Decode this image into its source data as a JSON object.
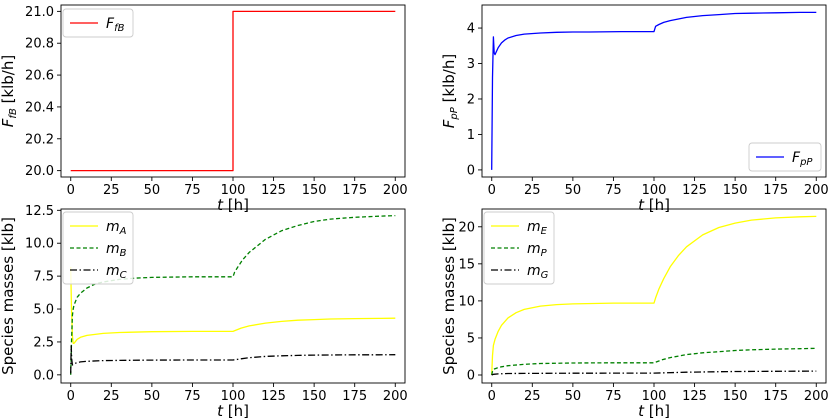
{
  "chart_data": [
    {
      "id": "p1",
      "type": "line",
      "ylabel": "F_fB [klb/h]",
      "ylabel_main": "F",
      "ylabel_sub": "fB",
      "ylabel_unit": " [klb/h]",
      "xlabel_main": "t",
      "xlabel_unit": " [h]",
      "xlim": [
        -6,
        206
      ],
      "ylim": [
        19.96,
        21.04
      ],
      "xticks": [
        0,
        25,
        50,
        75,
        100,
        125,
        150,
        175,
        200
      ],
      "xtick_labels": [
        "0",
        "25",
        "50",
        "75",
        "100",
        "125",
        "150",
        "175",
        "200"
      ],
      "yticks": [
        20.0,
        20.2,
        20.4,
        20.6,
        20.8,
        21.0
      ],
      "ytick_labels": [
        "20.0",
        "20.2",
        "20.4",
        "20.6",
        "20.8",
        "21.0"
      ],
      "legend_position": "top-left",
      "series": [
        {
          "name": "F_fB",
          "main": "F",
          "sub": "fB",
          "color": "#ff0000",
          "dash": "",
          "x": [
            0,
            100,
            100,
            200
          ],
          "y": [
            20.0,
            20.0,
            21.0,
            21.0
          ]
        }
      ]
    },
    {
      "id": "p2",
      "type": "line",
      "ylabel": "F_pP [klb/h]",
      "ylabel_main": "F",
      "ylabel_sub": "pP",
      "ylabel_unit": " [klb/h]",
      "xlabel_main": "t",
      "xlabel_unit": " [h]",
      "xlim": [
        -6,
        206
      ],
      "ylim": [
        -0.2,
        4.65
      ],
      "xticks": [
        0,
        25,
        50,
        75,
        100,
        125,
        150,
        175,
        200
      ],
      "xtick_labels": [
        "0",
        "25",
        "50",
        "75",
        "100",
        "125",
        "150",
        "175",
        "200"
      ],
      "yticks": [
        0,
        1,
        2,
        3,
        4
      ],
      "ytick_labels": [
        "0",
        "1",
        "2",
        "3",
        "4"
      ],
      "legend_position": "bottom-right",
      "series": [
        {
          "name": "F_pP",
          "main": "F",
          "sub": "pP",
          "color": "#0000ff",
          "dash": "",
          "x": [
            0,
            0.5,
            1,
            1.5,
            2,
            4,
            6,
            8,
            10,
            15,
            20,
            30,
            40,
            50,
            60,
            80,
            100,
            101,
            103,
            106,
            110,
            120,
            130,
            140,
            150,
            160,
            175,
            190,
            200
          ],
          "y": [
            0.0,
            2.6,
            3.75,
            3.3,
            3.25,
            3.45,
            3.58,
            3.66,
            3.72,
            3.79,
            3.83,
            3.86,
            3.88,
            3.89,
            3.89,
            3.9,
            3.9,
            4.05,
            4.1,
            4.16,
            4.21,
            4.3,
            4.35,
            4.38,
            4.41,
            4.42,
            4.43,
            4.44,
            4.44
          ]
        }
      ]
    },
    {
      "id": "p3",
      "type": "line",
      "ylabel": "Species masses [klb]",
      "xlabel_main": "t",
      "xlabel_unit": " [h]",
      "xlim": [
        -6,
        206
      ],
      "ylim": [
        -0.62,
        12.6
      ],
      "xticks": [
        0,
        25,
        50,
        75,
        100,
        125,
        150,
        175,
        200
      ],
      "xtick_labels": [
        "0",
        "25",
        "50",
        "75",
        "100",
        "125",
        "150",
        "175",
        "200"
      ],
      "yticks": [
        0.0,
        2.5,
        5.0,
        7.5,
        10.0,
        12.5
      ],
      "ytick_labels": [
        "0.0",
        "2.5",
        "5.0",
        "7.5",
        "10.0",
        "12.5"
      ],
      "legend_position": "top-left",
      "series": [
        {
          "name": "m_A",
          "main": "m",
          "sub": "A",
          "color": "#ffff00",
          "dash": "",
          "x": [
            0,
            0.5,
            1,
            1.5,
            2,
            4,
            6,
            10,
            20,
            30,
            50,
            75,
            100,
            105,
            110,
            120,
            130,
            140,
            150,
            160,
            175,
            190,
            200
          ],
          "y": [
            8.2,
            5.0,
            3.0,
            2.4,
            2.4,
            2.7,
            2.85,
            3.0,
            3.15,
            3.22,
            3.28,
            3.3,
            3.3,
            3.55,
            3.72,
            3.93,
            4.06,
            4.15,
            4.2,
            4.24,
            4.27,
            4.29,
            4.3
          ]
        },
        {
          "name": "m_B",
          "main": "m",
          "sub": "B",
          "color": "#008000",
          "dash": "4,2.5",
          "x": [
            0,
            0.5,
            1,
            1.5,
            2,
            4,
            6,
            10,
            15,
            20,
            30,
            40,
            50,
            75,
            100,
            101,
            103,
            106,
            110,
            120,
            130,
            140,
            150,
            160,
            175,
            190,
            200
          ],
          "y": [
            0.0,
            2.5,
            4.5,
            5.0,
            5.3,
            5.9,
            6.2,
            6.6,
            6.9,
            7.05,
            7.25,
            7.35,
            7.4,
            7.45,
            7.45,
            7.8,
            8.2,
            8.75,
            9.3,
            10.3,
            10.95,
            11.35,
            11.65,
            11.83,
            11.97,
            12.05,
            12.1
          ]
        },
        {
          "name": "m_C",
          "main": "m",
          "sub": "C",
          "color": "#000000",
          "dash": "7,2.5,1.5,2.5",
          "x": [
            0,
            0.3,
            0.6,
            1,
            1.5,
            2,
            4,
            6,
            10,
            20,
            30,
            50,
            75,
            100,
            105,
            110,
            120,
            130,
            140,
            150,
            160,
            175,
            190,
            200
          ],
          "y": [
            0.1,
            2.2,
            1.2,
            0.75,
            0.8,
            0.85,
            0.93,
            0.98,
            1.03,
            1.08,
            1.1,
            1.12,
            1.13,
            1.13,
            1.22,
            1.3,
            1.4,
            1.45,
            1.48,
            1.5,
            1.51,
            1.52,
            1.52,
            1.53
          ]
        }
      ]
    },
    {
      "id": "p4",
      "type": "line",
      "ylabel": "Species masses [klb]",
      "xlabel_main": "t",
      "xlabel_unit": " [h]",
      "xlim": [
        -6,
        206
      ],
      "ylim": [
        -1.08,
        22.4
      ],
      "xticks": [
        0,
        25,
        50,
        75,
        100,
        125,
        150,
        175,
        200
      ],
      "xtick_labels": [
        "0",
        "25",
        "50",
        "75",
        "100",
        "125",
        "150",
        "175",
        "200"
      ],
      "yticks": [
        0,
        5,
        10,
        15,
        20
      ],
      "ytick_labels": [
        "0",
        "5",
        "10",
        "15",
        "20"
      ],
      "legend_position": "top-left",
      "series": [
        {
          "name": "m_E",
          "main": "m",
          "sub": "E",
          "color": "#ffff00",
          "dash": "",
          "x": [
            0,
            0.5,
            1,
            2,
            4,
            6,
            10,
            15,
            20,
            30,
            40,
            50,
            75,
            100,
            101,
            103,
            106,
            110,
            115,
            120,
            130,
            140,
            150,
            160,
            175,
            190,
            200
          ],
          "y": [
            0.0,
            2.6,
            4.0,
            4.8,
            5.9,
            6.7,
            7.7,
            8.4,
            8.85,
            9.3,
            9.5,
            9.6,
            9.7,
            9.7,
            10.4,
            11.6,
            13.0,
            14.6,
            16.1,
            17.3,
            18.9,
            19.9,
            20.5,
            20.9,
            21.2,
            21.35,
            21.4
          ]
        },
        {
          "name": "m_P",
          "main": "m",
          "sub": "P",
          "color": "#008000",
          "dash": "4,2.5",
          "x": [
            0,
            0.5,
            1,
            2,
            4,
            6,
            10,
            20,
            30,
            50,
            75,
            100,
            105,
            110,
            120,
            130,
            140,
            150,
            160,
            175,
            190,
            200
          ],
          "y": [
            0.0,
            0.5,
            0.75,
            0.85,
            1.0,
            1.1,
            1.25,
            1.45,
            1.55,
            1.62,
            1.65,
            1.65,
            2.05,
            2.35,
            2.75,
            3.0,
            3.15,
            3.3,
            3.4,
            3.5,
            3.55,
            3.6
          ]
        },
        {
          "name": "m_G",
          "main": "m",
          "sub": "G",
          "color": "#000000",
          "dash": "7,2.5,1.5,2.5",
          "x": [
            0,
            1,
            4,
            10,
            20,
            50,
            100,
            120,
            150,
            175,
            200
          ],
          "y": [
            0.0,
            0.1,
            0.15,
            0.2,
            0.22,
            0.24,
            0.25,
            0.38,
            0.47,
            0.5,
            0.52
          ]
        }
      ]
    }
  ]
}
